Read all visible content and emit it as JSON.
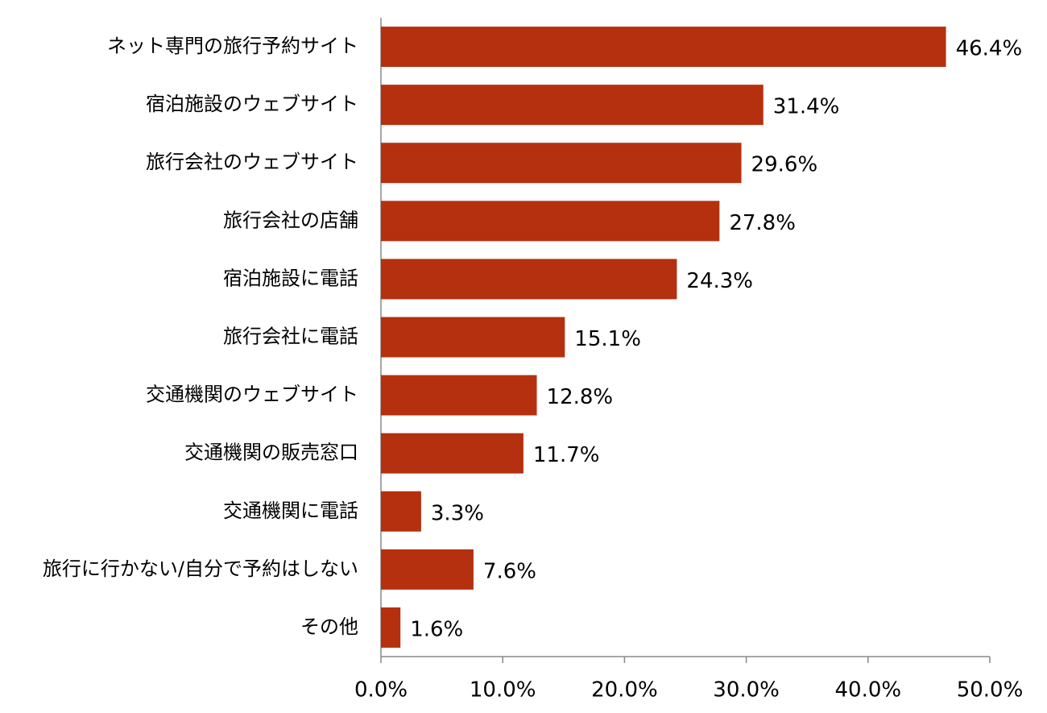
{
  "chart_data": {
    "type": "bar",
    "orientation": "horizontal",
    "categories": [
      "ネット専門の旅行予約サイト",
      "宿泊施設のウェブサイト",
      "旅行会社のウェブサイト",
      "旅行会社の店舗",
      "宿泊施設に電話",
      "旅行会社に電話",
      "交通機関のウェブサイト",
      "交通機関の販売窓口",
      "交通機関に電話",
      "旅行に行かない/自分で予約はしない",
      "その他"
    ],
    "values": [
      46.4,
      31.4,
      29.6,
      27.8,
      24.3,
      15.1,
      12.8,
      11.7,
      3.3,
      7.6,
      1.6
    ],
    "value_labels": [
      "46.4%",
      "31.4%",
      "29.6%",
      "27.8%",
      "24.3%",
      "15.1%",
      "12.8%",
      "11.7%",
      "3.3%",
      "7.6%",
      "1.6%"
    ],
    "color": "#b5300f",
    "xlim": [
      0,
      50
    ],
    "xticks": [
      {
        "value": 0,
        "label": "0.0%"
      },
      {
        "value": 10,
        "label": "10.0%"
      },
      {
        "value": 20,
        "label": "20.0%"
      },
      {
        "value": 30,
        "label": "30.0%"
      },
      {
        "value": 40,
        "label": "40.0%"
      },
      {
        "value": 50,
        "label": "50.0%"
      }
    ],
    "grid": false
  }
}
